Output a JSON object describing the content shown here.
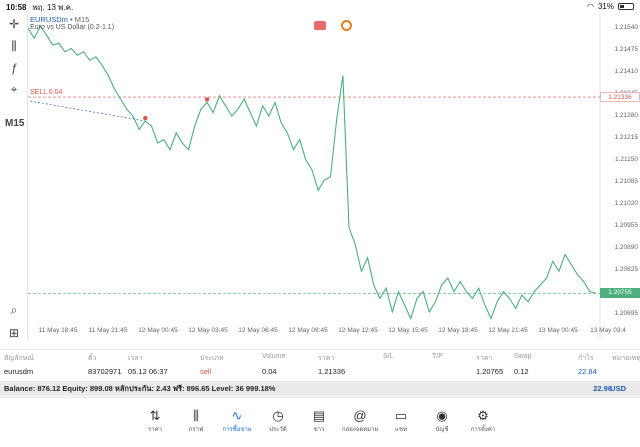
{
  "status": {
    "time": "10:58",
    "date": "พฤ. 13 พ.ค.",
    "battery": "31%",
    "battery_level": 0.31
  },
  "toolbar": {
    "timeframe": "M15"
  },
  "chart": {
    "symbol": "EURUSDm",
    "timeframe": "• M15",
    "description": "Euro vs US Dollar (0.2-1.1)",
    "trade_label": "SELL 0.04",
    "sell_price": "1.21336",
    "current_price": "1.20755",
    "colors": {
      "line": "#4caf7d",
      "sell": "#d9534f",
      "current": "#4caf7d",
      "entry": "#3a64c8"
    }
  },
  "chart_data": {
    "type": "line",
    "y_ticks": [
      "1.21540",
      "1.21475",
      "1.21410",
      "1.21345",
      "1.21280",
      "1.21215",
      "1.21150",
      "1.21085",
      "1.21020",
      "1.20955",
      "1.20890",
      "1.20825",
      "1.20755",
      "1.20695"
    ],
    "x_ticks": [
      "11 May 18:45",
      "11 May 21:45",
      "12 May 00:45",
      "12 May 03:45",
      "12 May 06:45",
      "12 May 09:45",
      "12 May 12:45",
      "12 May 15:45",
      "12 May 18:45",
      "12 May 21:45",
      "13 May 00:45",
      "13 May 03:4"
    ],
    "ylim": [
      1.2067,
      1.2157
    ],
    "series": [
      {
        "values": [
          1.2154,
          1.2151,
          1.21545,
          1.2152,
          1.2149,
          1.21495,
          1.2147,
          1.2148,
          1.2146,
          1.2147,
          1.21445,
          1.21455,
          1.2143,
          1.214,
          1.2136,
          1.2133,
          1.213,
          1.2128,
          1.2124,
          1.21265,
          1.2125,
          1.212,
          1.2121,
          1.2118,
          1.2123,
          1.212,
          1.2118,
          1.2125,
          1.213,
          1.2132,
          1.2129,
          1.2134,
          1.2131,
          1.2128,
          1.213,
          1.2133,
          1.2129,
          1.2125,
          1.2131,
          1.2128,
          1.2132,
          1.2126,
          1.2123,
          1.2118,
          1.2121,
          1.2115,
          1.2112,
          1.2106,
          1.2109,
          1.211,
          1.2127,
          1.214,
          1.2095,
          1.209,
          1.2082,
          1.2086,
          1.2078,
          1.2074,
          1.2077,
          1.207,
          1.2076,
          1.2072,
          1.2068,
          1.2074,
          1.2076,
          1.207,
          1.2073,
          1.2078,
          1.208,
          1.2076,
          1.2079,
          1.2076,
          1.2074,
          1.2077,
          1.2072,
          1.2068,
          1.2073,
          1.2076,
          1.2074,
          1.2071,
          1.2075,
          1.2073,
          1.2076,
          1.2078,
          1.208,
          1.2085,
          1.2082,
          1.2087,
          1.2084,
          1.2081,
          1.2079,
          1.2076,
          1.20755
        ]
      }
    ]
  },
  "table": {
    "headers": [
      "สัญลักษณ์",
      "ตั๋ว",
      "เวลา",
      "ประเภท",
      "Volume",
      "ราคา",
      "S/L",
      "T/P",
      "ราคา",
      "Swap",
      "กำไร",
      "หมายเหตุ"
    ],
    "row": [
      "eurusdm",
      "83702971",
      "05.12 06:37",
      "sell",
      "0.04",
      "1.21336",
      "",
      "",
      "1.20765",
      "0.12",
      "22.84",
      ""
    ]
  },
  "balance": {
    "text": "Balance: 876.12 Equity: 899.08 หลักประกัน: 2.43 ฟรี: 896.65 Level: 36 999.18%",
    "total": "22.96",
    "currency": "USD"
  },
  "nav": [
    {
      "label": "ราคา",
      "icon": "quotes-icon"
    },
    {
      "label": "กราฟ",
      "icon": "chart-icon"
    },
    {
      "label": "การซื้อขาย",
      "icon": "trade-icon"
    },
    {
      "label": "ประวัติ",
      "icon": "history-icon"
    },
    {
      "label": "ข่าว",
      "icon": "news-icon"
    },
    {
      "label": "กล่องจดหมาย",
      "icon": "mail-icon"
    },
    {
      "label": "แชท",
      "icon": "chat-icon"
    },
    {
      "label": "บัญชี",
      "icon": "account-icon"
    },
    {
      "label": "การตั้งค่า",
      "icon": "settings-icon"
    }
  ]
}
